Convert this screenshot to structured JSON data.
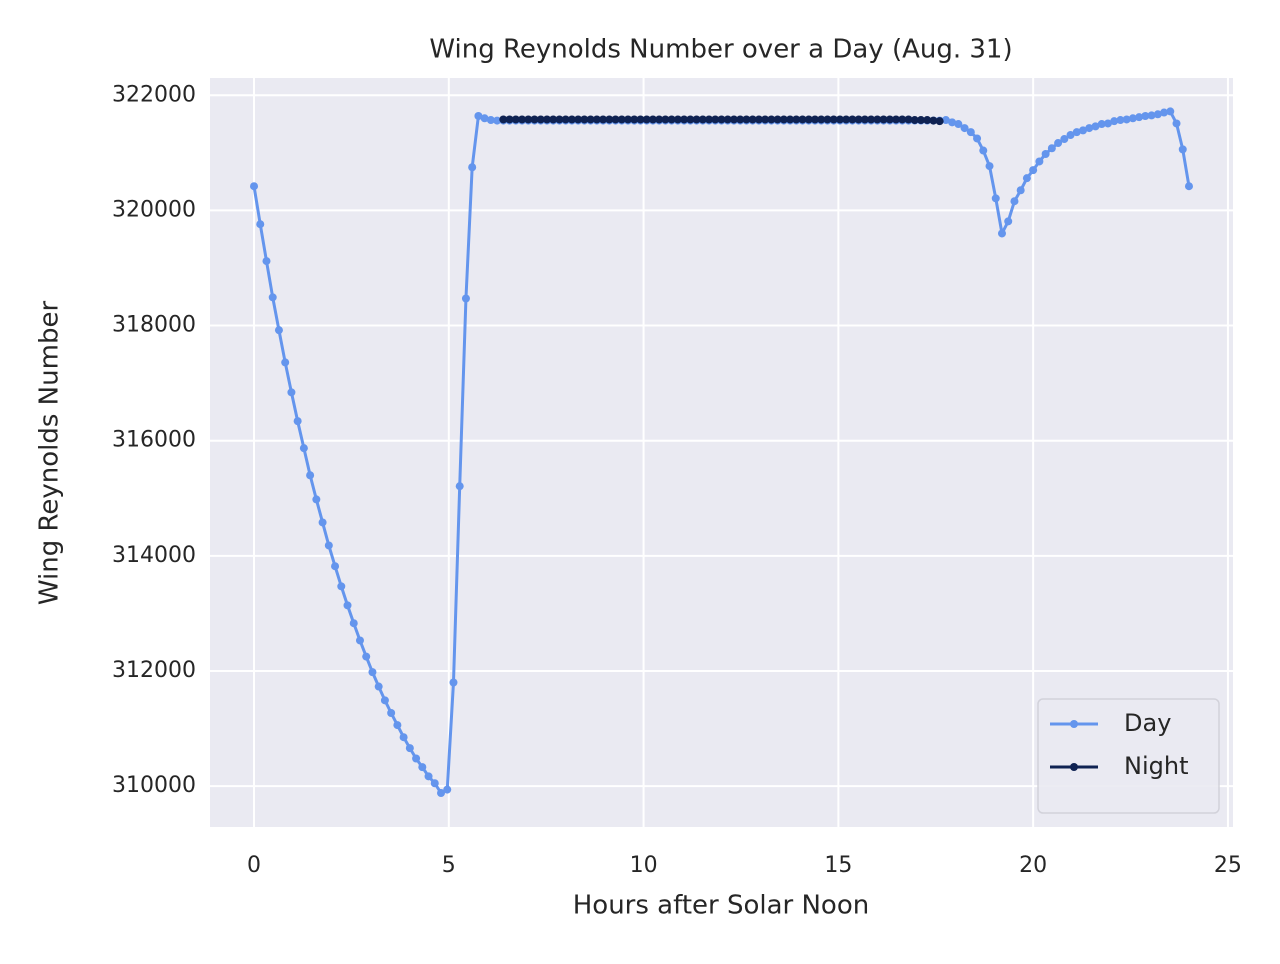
{
  "chart_data": {
    "type": "line",
    "title": "Wing Reynolds Number over a Day (Aug. 31)",
    "x_label": "Hours after Solar Noon",
    "y_label": "Wing Reynolds Number",
    "x": [
      0,
      0.16,
      0.32,
      0.48,
      0.64,
      0.8,
      0.96,
      1.12,
      1.28,
      1.44,
      1.6,
      1.76,
      1.92,
      2.08,
      2.24,
      2.4,
      2.56,
      2.72,
      2.88,
      3.04,
      3.2,
      3.36,
      3.52,
      3.68,
      3.84,
      4,
      4.16,
      4.32,
      4.48,
      4.64,
      4.8,
      4.96,
      5.12,
      5.28,
      5.44,
      5.6,
      5.76,
      5.92,
      6.08,
      6.24,
      6.4,
      6.56,
      6.72,
      6.88,
      7.04,
      7.2,
      7.36,
      7.52,
      7.68,
      7.84,
      8,
      8.16,
      8.32,
      8.48,
      8.64,
      8.8,
      8.96,
      9.12,
      9.28,
      9.44,
      9.6,
      9.76,
      9.92,
      10.08,
      10.24,
      10.4,
      10.56,
      10.72,
      10.88,
      11.04,
      11.2,
      11.36,
      11.52,
      11.68,
      11.84,
      12,
      12.16,
      12.32,
      12.48,
      12.64,
      12.8,
      12.96,
      13.12,
      13.28,
      13.44,
      13.6,
      13.76,
      13.92,
      14.08,
      14.24,
      14.4,
      14.56,
      14.72,
      14.88,
      15.04,
      15.2,
      15.36,
      15.52,
      15.68,
      15.84,
      16,
      16.16,
      16.32,
      16.48,
      16.64,
      16.8,
      16.96,
      17.12,
      17.28,
      17.44,
      17.6,
      17.76,
      17.92,
      18.08,
      18.24,
      18.4,
      18.56,
      18.72,
      18.88,
      19.04,
      19.2,
      19.36,
      19.52,
      19.68,
      19.84,
      20,
      20.16,
      20.32,
      20.48,
      20.64,
      20.8,
      20.96,
      21.12,
      21.28,
      21.44,
      21.6,
      21.76,
      21.92,
      22.08,
      22.24,
      22.4,
      22.56,
      22.72,
      22.88,
      23.04,
      23.2,
      23.36,
      23.52,
      23.68,
      23.84,
      24
    ],
    "series": [
      {
        "name": "Day",
        "color": "#6495ed",
        "values": [
          320420,
          319760,
          319120,
          318490,
          317920,
          317360,
          316840,
          316340,
          315870,
          315400,
          314980,
          314580,
          314180,
          313820,
          313470,
          313140,
          312830,
          312530,
          312250,
          311980,
          311730,
          311490,
          311270,
          311060,
          310850,
          310660,
          310480,
          310330,
          310170,
          310050,
          309880,
          309940,
          311800,
          315210,
          318470,
          320750,
          321640,
          321600,
          321570,
          321560,
          321560,
          321560,
          321560,
          321560,
          321560,
          321560,
          321560,
          321560,
          321560,
          321560,
          321560,
          321560,
          321560,
          321560,
          321560,
          321560,
          321560,
          321560,
          321560,
          321560,
          321560,
          321560,
          321560,
          321560,
          321560,
          321560,
          321560,
          321560,
          321560,
          321560,
          321560,
          321560,
          321560,
          321560,
          321560,
          321560,
          321560,
          321560,
          321560,
          321560,
          321560,
          321560,
          321560,
          321560,
          321560,
          321560,
          321560,
          321560,
          321560,
          321560,
          321560,
          321560,
          321560,
          321560,
          321560,
          321560,
          321560,
          321560,
          321560,
          321560,
          321560,
          321560,
          321560,
          321560,
          321560,
          321560,
          321560,
          321560,
          321560,
          321560,
          321560,
          321570,
          321530,
          321500,
          321430,
          321360,
          321250,
          321040,
          320770,
          320210,
          319600,
          319810,
          320160,
          320350,
          320560,
          320700,
          320850,
          320980,
          321080,
          321170,
          321240,
          321310,
          321360,
          321390,
          321430,
          321460,
          321500,
          321510,
          321550,
          321570,
          321580,
          321600,
          321620,
          321640,
          321650,
          321670,
          321700,
          321720,
          321510,
          321060,
          320420
        ]
      },
      {
        "name": "Night",
        "color": "#0f2252",
        "values": [
          null,
          null,
          null,
          null,
          null,
          null,
          null,
          null,
          null,
          null,
          null,
          null,
          null,
          null,
          null,
          null,
          null,
          null,
          null,
          null,
          null,
          null,
          null,
          null,
          null,
          null,
          null,
          null,
          null,
          null,
          null,
          null,
          null,
          null,
          null,
          null,
          null,
          null,
          null,
          null,
          321580,
          321580,
          321580,
          321580,
          321580,
          321580,
          321580,
          321580,
          321580,
          321580,
          321580,
          321580,
          321580,
          321580,
          321580,
          321580,
          321580,
          321580,
          321580,
          321580,
          321580,
          321580,
          321580,
          321580,
          321580,
          321580,
          321580,
          321580,
          321580,
          321580,
          321580,
          321580,
          321580,
          321580,
          321580,
          321580,
          321580,
          321580,
          321580,
          321580,
          321580,
          321580,
          321580,
          321580,
          321580,
          321580,
          321580,
          321580,
          321580,
          321580,
          321580,
          321580,
          321580,
          321580,
          321580,
          321580,
          321580,
          321580,
          321580,
          321580,
          321580,
          321580,
          321580,
          321580,
          321580,
          321580,
          321570,
          321570,
          321570,
          321560,
          321550,
          null,
          null,
          null,
          null,
          null,
          null,
          null,
          null,
          null,
          null,
          null,
          null,
          null,
          null,
          null,
          null,
          null,
          null,
          null,
          null,
          null,
          null,
          null,
          null,
          null,
          null,
          null,
          null,
          null,
          null,
          null,
          null,
          null,
          null,
          null,
          null,
          null,
          null,
          null,
          null
        ]
      }
    ],
    "xlim": [
      -1.13,
      25.13
    ],
    "ylim": [
      309290,
      322300
    ],
    "xticks": [
      0,
      5,
      10,
      15,
      20,
      25
    ],
    "yticks": [
      310000,
      312000,
      314000,
      316000,
      318000,
      320000,
      322000
    ],
    "grid": true,
    "legend": "lower right"
  }
}
